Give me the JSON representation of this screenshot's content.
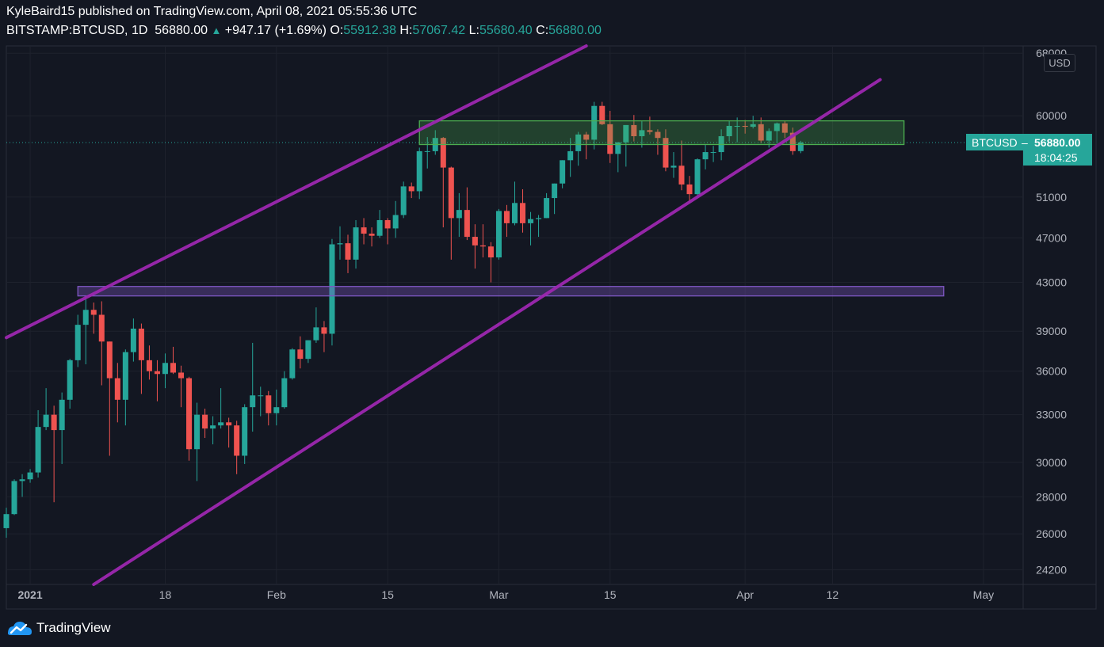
{
  "header": {
    "publisher": "KyleBaird15 published on TradingView.com, April 08, 2021 05:55:36 UTC",
    "symbol": "BITSTAMP:BTCUSD, 1D",
    "last": "56880.00",
    "change": "+947.17 (+1.69%)",
    "o_label": "O:",
    "o": "55912.38",
    "h_label": "H:",
    "h": "57067.42",
    "l_label": "L:",
    "l": "55680.40",
    "c_label": "C:",
    "c": "56880.00"
  },
  "brand": {
    "name": "TradingView"
  },
  "colors": {
    "up": "#26a69a",
    "down": "#ef5350",
    "channel": "#9c27b0",
    "zone_green": "#4caf50",
    "zone_purple": "#7e57c2",
    "background": "#131722"
  },
  "chart_data": {
    "type": "candlestick",
    "currency_label": "USD",
    "price_label": {
      "symbol": "BTCUSD",
      "value": "56880.00",
      "countdown": "18:04:25"
    },
    "y_axis": {
      "scale": "log",
      "range": [
        23500,
        69000
      ],
      "ticks": [
        "68000",
        "60000",
        "51000",
        "47000",
        "43000",
        "39000",
        "36000",
        "33000",
        "30000",
        "28000",
        "26000",
        "24200"
      ]
    },
    "x_axis": {
      "range": [
        "2020-12-29",
        "2021-05-06"
      ],
      "ticks": [
        {
          "date": "2021-01-01",
          "label": "2021"
        },
        {
          "date": "2021-01-18",
          "label": "18"
        },
        {
          "date": "2021-02-01",
          "label": "Feb"
        },
        {
          "date": "2021-02-15",
          "label": "15"
        },
        {
          "date": "2021-03-01",
          "label": "Mar"
        },
        {
          "date": "2021-03-15",
          "label": "15"
        },
        {
          "date": "2021-04-01",
          "label": "Apr"
        },
        {
          "date": "2021-04-12",
          "label": "12"
        },
        {
          "date": "2021-05-01",
          "label": "May"
        }
      ]
    },
    "candles": [
      {
        "d": "2020-12-29",
        "o": 26300,
        "h": 27400,
        "l": 25800,
        "c": 27050
      },
      {
        "d": "2020-12-30",
        "o": 27050,
        "h": 29000,
        "l": 27000,
        "c": 28900
      },
      {
        "d": "2020-12-31",
        "o": 28900,
        "h": 29300,
        "l": 28000,
        "c": 29000
      },
      {
        "d": "2021-01-01",
        "o": 29000,
        "h": 29600,
        "l": 28800,
        "c": 29400
      },
      {
        "d": "2021-01-02",
        "o": 29400,
        "h": 33300,
        "l": 29100,
        "c": 32200
      },
      {
        "d": "2021-01-03",
        "o": 32200,
        "h": 34800,
        "l": 32000,
        "c": 33000
      },
      {
        "d": "2021-01-04",
        "o": 33000,
        "h": 33600,
        "l": 27700,
        "c": 32000
      },
      {
        "d": "2021-01-05",
        "o": 32000,
        "h": 34500,
        "l": 29900,
        "c": 34000
      },
      {
        "d": "2021-01-06",
        "o": 34000,
        "h": 36900,
        "l": 33400,
        "c": 36800
      },
      {
        "d": "2021-01-07",
        "o": 36800,
        "h": 40300,
        "l": 36300,
        "c": 39500
      },
      {
        "d": "2021-01-08",
        "o": 39500,
        "h": 41900,
        "l": 36500,
        "c": 40700
      },
      {
        "d": "2021-01-09",
        "o": 40700,
        "h": 41300,
        "l": 38800,
        "c": 40300
      },
      {
        "d": "2021-01-10",
        "o": 40300,
        "h": 41400,
        "l": 35000,
        "c": 38200
      },
      {
        "d": "2021-01-11",
        "o": 38200,
        "h": 38200,
        "l": 30400,
        "c": 35500
      },
      {
        "d": "2021-01-12",
        "o": 35500,
        "h": 36600,
        "l": 32500,
        "c": 34000
      },
      {
        "d": "2021-01-13",
        "o": 34000,
        "h": 37600,
        "l": 32300,
        "c": 37400
      },
      {
        "d": "2021-01-14",
        "o": 37400,
        "h": 40000,
        "l": 36700,
        "c": 39200
      },
      {
        "d": "2021-01-15",
        "o": 39200,
        "h": 39600,
        "l": 34400,
        "c": 36800
      },
      {
        "d": "2021-01-16",
        "o": 36800,
        "h": 37900,
        "l": 35400,
        "c": 36000
      },
      {
        "d": "2021-01-17",
        "o": 36000,
        "h": 36800,
        "l": 33900,
        "c": 35800
      },
      {
        "d": "2021-01-18",
        "o": 35800,
        "h": 37300,
        "l": 34800,
        "c": 36600
      },
      {
        "d": "2021-01-19",
        "o": 36600,
        "h": 37800,
        "l": 35800,
        "c": 35900
      },
      {
        "d": "2021-01-20",
        "o": 35900,
        "h": 36400,
        "l": 33500,
        "c": 35500
      },
      {
        "d": "2021-01-21",
        "o": 35500,
        "h": 35600,
        "l": 30100,
        "c": 30800
      },
      {
        "d": "2021-01-22",
        "o": 30800,
        "h": 33800,
        "l": 28900,
        "c": 33000
      },
      {
        "d": "2021-01-23",
        "o": 33000,
        "h": 33400,
        "l": 31500,
        "c": 32100
      },
      {
        "d": "2021-01-24",
        "o": 32100,
        "h": 32900,
        "l": 31100,
        "c": 32300
      },
      {
        "d": "2021-01-25",
        "o": 32300,
        "h": 34800,
        "l": 32100,
        "c": 32500
      },
      {
        "d": "2021-01-26",
        "o": 32500,
        "h": 32800,
        "l": 30900,
        "c": 32300
      },
      {
        "d": "2021-01-27",
        "o": 32300,
        "h": 32600,
        "l": 29300,
        "c": 30400
      },
      {
        "d": "2021-01-28",
        "o": 30400,
        "h": 33700,
        "l": 29900,
        "c": 33500
      },
      {
        "d": "2021-01-29",
        "o": 33500,
        "h": 38100,
        "l": 31900,
        "c": 34300
      },
      {
        "d": "2021-01-30",
        "o": 34300,
        "h": 34900,
        "l": 32900,
        "c": 34300
      },
      {
        "d": "2021-01-31",
        "o": 34300,
        "h": 34600,
        "l": 32300,
        "c": 33100
      },
      {
        "d": "2021-02-01",
        "o": 33100,
        "h": 34700,
        "l": 32300,
        "c": 33500
      },
      {
        "d": "2021-02-02",
        "o": 33500,
        "h": 36000,
        "l": 33400,
        "c": 35500
      },
      {
        "d": "2021-02-03",
        "o": 35500,
        "h": 37700,
        "l": 35400,
        "c": 37600
      },
      {
        "d": "2021-02-04",
        "o": 37600,
        "h": 38600,
        "l": 36200,
        "c": 36900
      },
      {
        "d": "2021-02-05",
        "o": 36900,
        "h": 38300,
        "l": 36600,
        "c": 38300
      },
      {
        "d": "2021-02-06",
        "o": 38300,
        "h": 40900,
        "l": 38100,
        "c": 39300
      },
      {
        "d": "2021-02-07",
        "o": 39300,
        "h": 39800,
        "l": 37400,
        "c": 38800
      },
      {
        "d": "2021-02-08",
        "o": 38800,
        "h": 46900,
        "l": 37900,
        "c": 46400
      },
      {
        "d": "2021-02-09",
        "o": 46400,
        "h": 48100,
        "l": 45000,
        "c": 46500
      },
      {
        "d": "2021-02-10",
        "o": 46500,
        "h": 47300,
        "l": 43800,
        "c": 45000
      },
      {
        "d": "2021-02-11",
        "o": 45000,
        "h": 48700,
        "l": 44200,
        "c": 48000
      },
      {
        "d": "2021-02-12",
        "o": 48000,
        "h": 48900,
        "l": 46400,
        "c": 47400
      },
      {
        "d": "2021-02-13",
        "o": 47400,
        "h": 48000,
        "l": 46200,
        "c": 47200
      },
      {
        "d": "2021-02-14",
        "o": 47200,
        "h": 49700,
        "l": 47000,
        "c": 48700
      },
      {
        "d": "2021-02-15",
        "o": 48700,
        "h": 48900,
        "l": 46400,
        "c": 47900
      },
      {
        "d": "2021-02-16",
        "o": 47900,
        "h": 50600,
        "l": 47000,
        "c": 49200
      },
      {
        "d": "2021-02-17",
        "o": 49200,
        "h": 52600,
        "l": 48900,
        "c": 52100
      },
      {
        "d": "2021-02-18",
        "o": 52100,
        "h": 52500,
        "l": 50900,
        "c": 51600
      },
      {
        "d": "2021-02-19",
        "o": 51600,
        "h": 56300,
        "l": 50800,
        "c": 55900
      },
      {
        "d": "2021-02-20",
        "o": 55900,
        "h": 57500,
        "l": 54000,
        "c": 55900
      },
      {
        "d": "2021-02-21",
        "o": 55900,
        "h": 58300,
        "l": 55500,
        "c": 57400
      },
      {
        "d": "2021-02-22",
        "o": 57400,
        "h": 57500,
        "l": 48000,
        "c": 54100
      },
      {
        "d": "2021-02-23",
        "o": 54100,
        "h": 54200,
        "l": 45000,
        "c": 48900
      },
      {
        "d": "2021-02-24",
        "o": 48900,
        "h": 51400,
        "l": 47100,
        "c": 49700
      },
      {
        "d": "2021-02-25",
        "o": 49700,
        "h": 52000,
        "l": 46800,
        "c": 47100
      },
      {
        "d": "2021-02-26",
        "o": 47100,
        "h": 48300,
        "l": 44200,
        "c": 46300
      },
      {
        "d": "2021-02-27",
        "o": 46300,
        "h": 48300,
        "l": 45200,
        "c": 46200
      },
      {
        "d": "2021-02-28",
        "o": 46200,
        "h": 46600,
        "l": 43000,
        "c": 45200
      },
      {
        "d": "2021-03-01",
        "o": 45200,
        "h": 49800,
        "l": 45000,
        "c": 49600
      },
      {
        "d": "2021-03-02",
        "o": 49600,
        "h": 50200,
        "l": 47100,
        "c": 48400
      },
      {
        "d": "2021-03-03",
        "o": 48400,
        "h": 52600,
        "l": 48200,
        "c": 50400
      },
      {
        "d": "2021-03-04",
        "o": 50400,
        "h": 51800,
        "l": 47500,
        "c": 48400
      },
      {
        "d": "2021-03-05",
        "o": 48400,
        "h": 49500,
        "l": 46300,
        "c": 48800
      },
      {
        "d": "2021-03-06",
        "o": 48800,
        "h": 49200,
        "l": 47100,
        "c": 48900
      },
      {
        "d": "2021-03-07",
        "o": 48900,
        "h": 51400,
        "l": 48900,
        "c": 50900
      },
      {
        "d": "2021-03-08",
        "o": 50900,
        "h": 52400,
        "l": 49300,
        "c": 52400
      },
      {
        "d": "2021-03-09",
        "o": 52400,
        "h": 54900,
        "l": 51900,
        "c": 54900
      },
      {
        "d": "2021-03-10",
        "o": 54900,
        "h": 57400,
        "l": 53100,
        "c": 55900
      },
      {
        "d": "2021-03-11",
        "o": 55900,
        "h": 58100,
        "l": 54300,
        "c": 57800
      },
      {
        "d": "2021-03-12",
        "o": 57800,
        "h": 58100,
        "l": 55000,
        "c": 57200
      },
      {
        "d": "2021-03-13",
        "o": 57200,
        "h": 61700,
        "l": 56100,
        "c": 61200
      },
      {
        "d": "2021-03-14",
        "o": 61200,
        "h": 61700,
        "l": 58900,
        "c": 59000
      },
      {
        "d": "2021-03-15",
        "o": 59000,
        "h": 60600,
        "l": 54600,
        "c": 55600
      },
      {
        "d": "2021-03-16",
        "o": 55600,
        "h": 56900,
        "l": 53600,
        "c": 56900
      },
      {
        "d": "2021-03-17",
        "o": 56900,
        "h": 58900,
        "l": 54200,
        "c": 58900
      },
      {
        "d": "2021-03-18",
        "o": 58900,
        "h": 60100,
        "l": 57000,
        "c": 57600
      },
      {
        "d": "2021-03-19",
        "o": 57600,
        "h": 59400,
        "l": 56300,
        "c": 58300
      },
      {
        "d": "2021-03-20",
        "o": 58300,
        "h": 59900,
        "l": 57800,
        "c": 58100
      },
      {
        "d": "2021-03-21",
        "o": 58100,
        "h": 58400,
        "l": 55500,
        "c": 57400
      },
      {
        "d": "2021-03-22",
        "o": 57400,
        "h": 58400,
        "l": 53700,
        "c": 54100
      },
      {
        "d": "2021-03-23",
        "o": 54100,
        "h": 55800,
        "l": 53000,
        "c": 54300
      },
      {
        "d": "2021-03-24",
        "o": 54300,
        "h": 57100,
        "l": 51700,
        "c": 52300
      },
      {
        "d": "2021-03-25",
        "o": 52300,
        "h": 53200,
        "l": 50400,
        "c": 51300
      },
      {
        "d": "2021-03-26",
        "o": 51300,
        "h": 55100,
        "l": 51200,
        "c": 55000
      },
      {
        "d": "2021-03-27",
        "o": 55000,
        "h": 56600,
        "l": 53900,
        "c": 55800
      },
      {
        "d": "2021-03-28",
        "o": 55800,
        "h": 56500,
        "l": 54700,
        "c": 55800
      },
      {
        "d": "2021-03-29",
        "o": 55800,
        "h": 58400,
        "l": 54900,
        "c": 57600
      },
      {
        "d": "2021-03-30",
        "o": 57600,
        "h": 59400,
        "l": 57000,
        "c": 58800
      },
      {
        "d": "2021-03-31",
        "o": 58800,
        "h": 59800,
        "l": 56900,
        "c": 58800
      },
      {
        "d": "2021-04-01",
        "o": 58800,
        "h": 59500,
        "l": 57900,
        "c": 58700
      },
      {
        "d": "2021-04-02",
        "o": 58700,
        "h": 60000,
        "l": 58500,
        "c": 59000
      },
      {
        "d": "2021-04-03",
        "o": 59000,
        "h": 59800,
        "l": 56800,
        "c": 57100
      },
      {
        "d": "2021-04-04",
        "o": 57100,
        "h": 58500,
        "l": 56300,
        "c": 58200
      },
      {
        "d": "2021-04-05",
        "o": 58200,
        "h": 59200,
        "l": 56800,
        "c": 59100
      },
      {
        "d": "2021-04-06",
        "o": 59100,
        "h": 59400,
        "l": 57400,
        "c": 58000
      },
      {
        "d": "2021-04-07",
        "o": 58000,
        "h": 58600,
        "l": 55500,
        "c": 55912.38
      },
      {
        "d": "2021-04-08",
        "o": 55912.38,
        "h": 57067.42,
        "l": 55680.4,
        "c": 56880.0
      }
    ],
    "annotations": [
      {
        "kind": "trendline",
        "name": "channel-upper",
        "from": {
          "d": "2020-12-29",
          "v": 38500
        },
        "to": {
          "d": "2021-03-12",
          "v": 69000
        }
      },
      {
        "kind": "trendline",
        "name": "channel-lower",
        "from": {
          "d": "2021-01-09",
          "v": 23500
        },
        "to": {
          "d": "2021-04-18",
          "v": 64500
        }
      },
      {
        "kind": "zone",
        "name": "resistance-zone",
        "color": "green",
        "from": "2021-02-19",
        "to": "2021-04-21",
        "top": 59400,
        "bottom": 56650
      },
      {
        "kind": "zone",
        "name": "support-zone",
        "color": "purple",
        "from": "2021-01-07",
        "to": "2021-04-26",
        "top": 42650,
        "bottom": 41850
      }
    ]
  }
}
